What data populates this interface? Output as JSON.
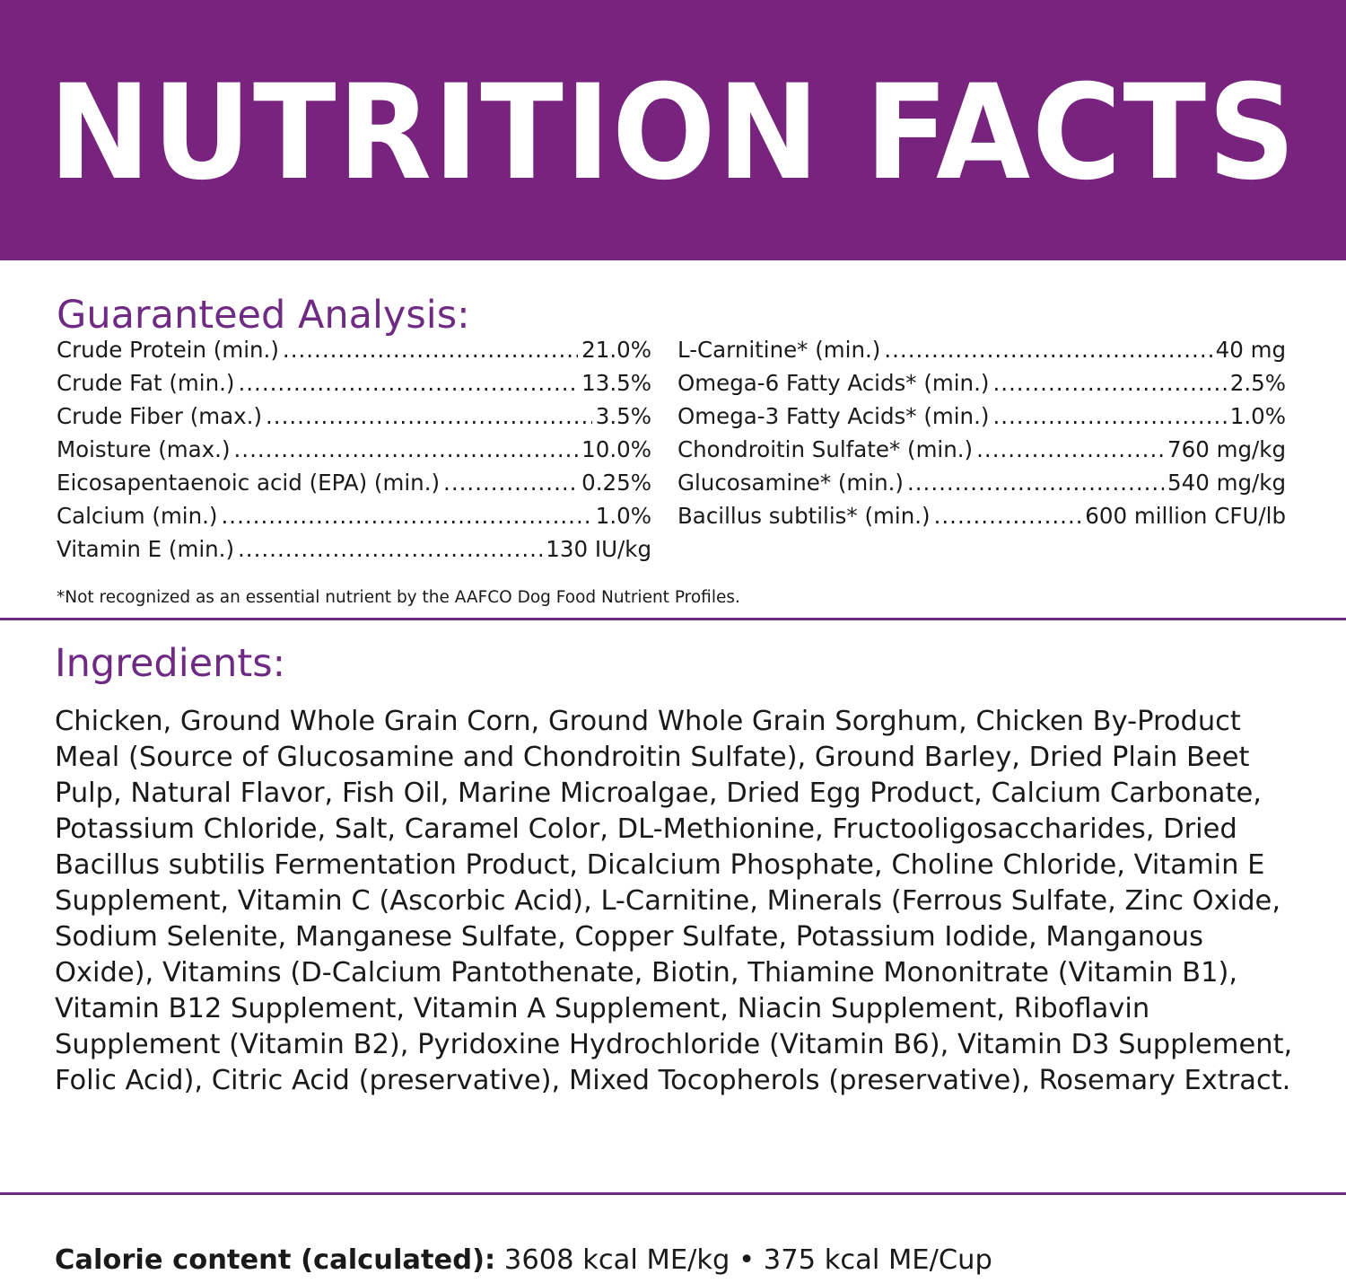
{
  "banner": {
    "title": "NUTRITION FACTS",
    "background_color": "#78247f"
  },
  "guaranteed_analysis": {
    "heading": "Guaranteed Analysis:",
    "left_column": [
      {
        "label": "Crude Protein (min.)",
        "value": "21.0%"
      },
      {
        "label": "Crude Fat (min.)",
        "value": "13.5%"
      },
      {
        "label": "Crude Fiber (max.)",
        "value": "3.5%"
      },
      {
        "label": "Moisture (max.)",
        "value": "10.0%"
      },
      {
        "label": "Eicosapentaenoic acid (EPA) (min.)",
        "value": "0.25%"
      },
      {
        "label": "Calcium (min.)",
        "value": "1.0%"
      },
      {
        "label": "Vitamin E (min.)",
        "value": "130 IU/kg"
      }
    ],
    "right_column": [
      {
        "label": "L-Carnitine* (min.)",
        "value": "40 mg"
      },
      {
        "label": "Omega-6 Fatty Acids* (min.)",
        "value": "2.5%"
      },
      {
        "label": "Omega-3 Fatty Acids* (min.)",
        "value": "1.0%"
      },
      {
        "label": "Chondroitin Sulfate* (min.)",
        "value": "760 mg/kg"
      },
      {
        "label": "Glucosamine* (min.)",
        "value": "540 mg/kg"
      },
      {
        "label": "Bacillus subtilis* (min.)",
        "value": "600 million CFU/lb"
      }
    ],
    "footnote": "*Not recognized as an essential nutrient by the AAFCO Dog Food Nutrient Profiles."
  },
  "ingredients": {
    "heading": "Ingredients:",
    "text": "Chicken, Ground Whole Grain Corn, Ground Whole Grain Sorghum, Chicken By-Product Meal (Source of Glucosamine and Chondroitin Sulfate), Ground Barley, Dried Plain Beet Pulp, Natural Flavor, Fish Oil, Marine Microalgae, Dried Egg Product, Calcium Carbonate, Potassium Chloride, Salt, Caramel Color, DL-Methionine, Fructooligosaccharides, Dried Bacillus subtilis Fermentation Product, Dicalcium Phosphate, Choline Chloride, Vitamin E Supplement, Vitamin C (Ascorbic Acid), L-Carnitine, Minerals (Ferrous Sulfate, Zinc Oxide, Sodium Selenite, Manganese Sulfate, Copper Sulfate, Potassium Iodide, Manganous Oxide), Vitamins (D-Calcium Pantothenate, Biotin, Thiamine Mononitrate (Vitamin B1), Vitamin B12 Supplement, Vitamin A Supplement, Niacin Supplement, Riboflavin Supplement (Vitamin B2), Pyridoxine Hydrochloride (Vitamin B6), Vitamin D3 Supplement, Folic Acid), Citric Acid (preservative), Mixed Tocopherols (preservative), Rosemary Extract."
  },
  "calorie": {
    "label": "Calorie content (calculated):",
    "value": "3608 kcal ME/kg • 375 kcal ME/Cup"
  },
  "colors": {
    "accent": "#6f2b84",
    "text": "#1a1a1a"
  }
}
